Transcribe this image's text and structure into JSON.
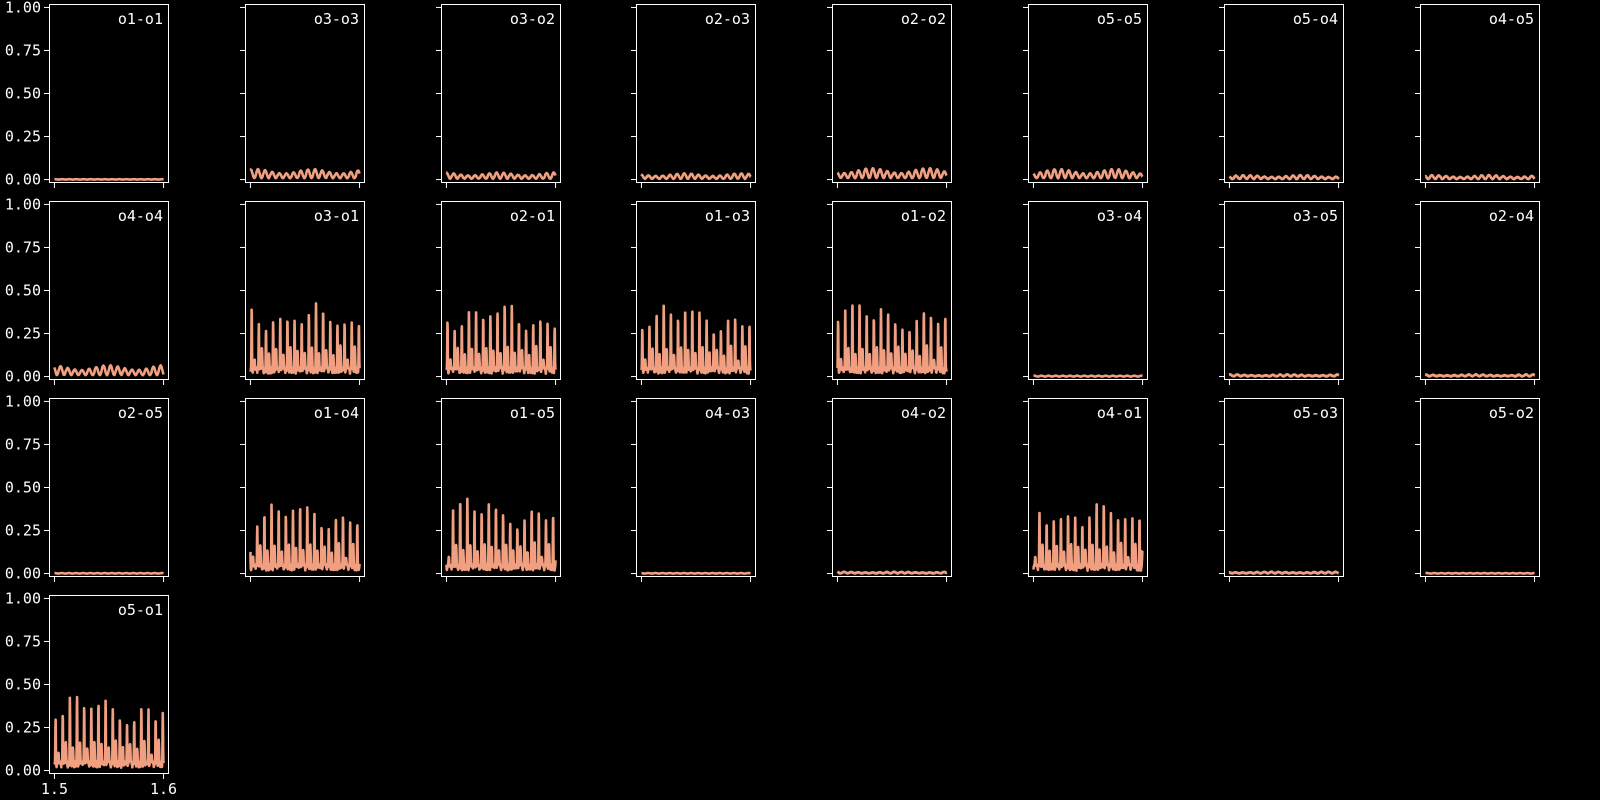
{
  "figure": {
    "background": "#000000",
    "axes_color": "#ffffff",
    "line_color": "#f0a080"
  },
  "chart_data": {
    "type": "line",
    "layout": {
      "rows": 4,
      "cols": 8
    },
    "xlim": [
      1.495,
      1.605
    ],
    "ylim": [
      -0.02,
      1.02
    ],
    "x_ticks": [
      1.5,
      1.6
    ],
    "x_tick_labels": [
      "1.5",
      "1.6"
    ],
    "y_ticks": [
      0.0,
      0.25,
      0.5,
      0.75,
      1.0
    ],
    "y_tick_labels": [
      "0.00",
      "0.25",
      "0.50",
      "0.75",
      "1.00"
    ],
    "x_range": [
      1.5,
      1.6
    ],
    "panels": [
      {
        "title": "o1-o1",
        "profile": "flat",
        "peak": 0.002
      },
      {
        "title": "o3-o3",
        "profile": "small",
        "peak": 0.06
      },
      {
        "title": "o3-o2",
        "profile": "small",
        "peak": 0.04
      },
      {
        "title": "o2-o3",
        "profile": "small",
        "peak": 0.035
      },
      {
        "title": "o2-o2",
        "profile": "small",
        "peak": 0.065
      },
      {
        "title": "o5-o5",
        "profile": "small",
        "peak": 0.06
      },
      {
        "title": "o5-o4",
        "profile": "small",
        "peak": 0.025
      },
      {
        "title": "o4-o5",
        "profile": "small",
        "peak": 0.025
      },
      {
        "title": "o4-o4",
        "profile": "small",
        "peak": 0.065
      },
      {
        "title": "o3-o1",
        "profile": "large",
        "peak": 0.41
      },
      {
        "title": "o2-o1",
        "profile": "large",
        "peak": 0.42
      },
      {
        "title": "o1-o3",
        "profile": "large",
        "peak": 0.41
      },
      {
        "title": "o1-o2",
        "profile": "large",
        "peak": 0.42
      },
      {
        "title": "o3-o4",
        "profile": "flat",
        "peak": 0.005
      },
      {
        "title": "o3-o5",
        "profile": "small",
        "peak": 0.012
      },
      {
        "title": "o2-o4",
        "profile": "small",
        "peak": 0.012
      },
      {
        "title": "o2-o5",
        "profile": "flat",
        "peak": 0.003
      },
      {
        "title": "o1-o4",
        "profile": "large",
        "peak": 0.41
      },
      {
        "title": "o1-o5",
        "profile": "large",
        "peak": 0.43
      },
      {
        "title": "o4-o3",
        "profile": "flat",
        "peak": 0.003
      },
      {
        "title": "o4-o2",
        "profile": "small",
        "peak": 0.01
      },
      {
        "title": "o4-o1",
        "profile": "large",
        "peak": 0.41
      },
      {
        "title": "o5-o3",
        "profile": "small",
        "peak": 0.01
      },
      {
        "title": "o5-o2",
        "profile": "flat",
        "peak": 0.003
      },
      {
        "title": "o5-o1",
        "profile": "large",
        "peak": 0.43
      }
    ]
  }
}
